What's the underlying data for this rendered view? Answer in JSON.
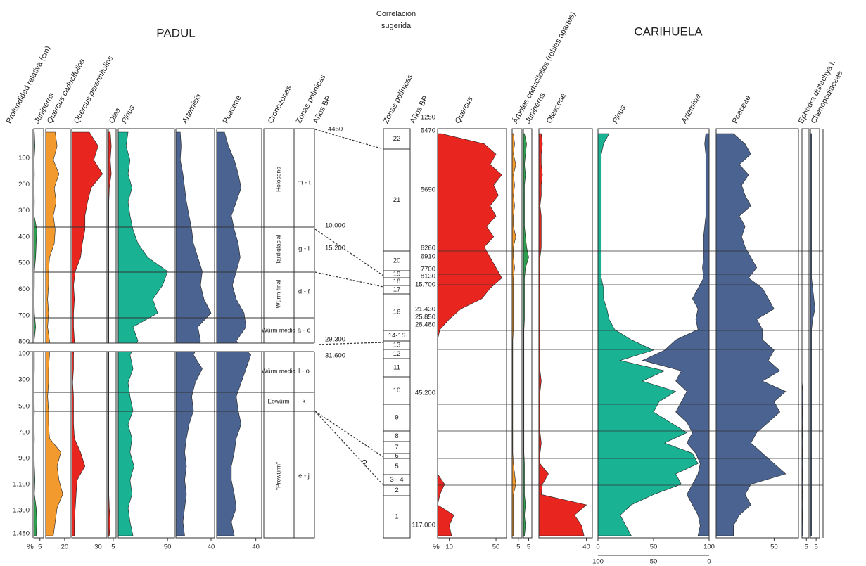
{
  "padul": {
    "title": "PADUL",
    "depth_header": "Profundidad relativa (cm)",
    "percent": "%",
    "depth_upper": [
      "100",
      "200",
      "300",
      "400",
      "500",
      "600",
      "700",
      "800"
    ],
    "depth_lower": [
      "100",
      "300",
      "500",
      "700",
      "900",
      "1.100",
      "1.300",
      "1.480"
    ],
    "cronozonas_header": "Cronozonas",
    "zonas_header": "Zonas polínicas",
    "anos_header": "Años BP",
    "cronozonas": [
      "Holoceno",
      "Tardiglacial",
      "Würm final",
      "Würm medio",
      "Würm medio",
      "Eowürm",
      "\"Prewürm\""
    ],
    "zonas": [
      "m - t",
      "g - l",
      "d - f",
      "a - c",
      "l - o",
      "k",
      "e - j"
    ],
    "ages": [
      "4450",
      "10.000",
      "15.200",
      "29.300",
      "31.600"
    ],
    "taxa": [
      {
        "name": "Juniperus",
        "italic": true,
        "color": "#2e9e4f",
        "xlim": [
          0,
          8
        ],
        "ticks": [
          5
        ],
        "values": [
          0.5,
          1,
          0.3,
          0.5,
          0.3,
          0.5,
          0.3,
          2.5,
          2,
          1.5,
          0.5,
          0.5,
          0.3,
          0.5,
          1.5,
          0.3,
          0.5,
          0.5,
          0.3,
          0.3,
          0.5,
          0.3,
          0.5,
          0.3,
          0.5,
          1,
          0.5,
          2,
          2.5,
          2
        ]
      },
      {
        "name": "Quercus caducifolios",
        "italic": true,
        "color": "#f39a2e",
        "xlim": [
          0,
          26
        ],
        "ticks": [
          20
        ],
        "values": [
          10,
          12,
          8,
          14,
          9,
          11,
          8,
          10,
          9,
          4,
          3,
          3,
          2,
          3,
          2,
          4,
          4,
          3,
          3,
          2,
          3,
          3,
          4,
          16,
          12,
          14,
          18,
          12,
          10,
          8
        ]
      },
      {
        "name": "Quercus perennifolios",
        "italic": true,
        "color": "#e8251f",
        "xlim": [
          0,
          40
        ],
        "ticks": [
          30
        ],
        "values": [
          20,
          30,
          25,
          35,
          22,
          18,
          15,
          15,
          12,
          10,
          4,
          2,
          3,
          2,
          2,
          3,
          2,
          2,
          1,
          2,
          2,
          2,
          3,
          10,
          15,
          6,
          5,
          4,
          3,
          3
        ]
      },
      {
        "name": "Olea",
        "italic": true,
        "color": "#e8251f",
        "xlim": [
          0,
          8
        ],
        "ticks": [
          5
        ],
        "values": [
          2,
          3,
          2,
          3,
          1,
          0.5,
          0.5,
          0.5,
          0.5,
          0.5,
          0.5,
          0.5,
          0.5,
          0.5,
          0.5,
          0.5,
          0.5,
          0.5,
          0.5,
          0.5,
          0.5,
          0.5,
          0.5,
          0.5,
          0.5,
          0.5,
          0.5,
          1,
          2,
          1
        ]
      },
      {
        "name": "Pinus",
        "italic": true,
        "color": "#19b394",
        "xlim": [
          0,
          57
        ],
        "ticks": [
          50
        ],
        "values": [
          10,
          8,
          12,
          10,
          14,
          10,
          12,
          15,
          20,
          30,
          50,
          45,
          35,
          40,
          15,
          20,
          12,
          15,
          10,
          12,
          15,
          10,
          14,
          12,
          16,
          12,
          14,
          10,
          12,
          15
        ]
      },
      {
        "name": "Artemisia",
        "italic": true,
        "color": "#4a6390",
        "xlim": [
          0,
          44
        ],
        "ticks": [
          40
        ],
        "values": [
          5,
          6,
          5,
          8,
          10,
          12,
          15,
          18,
          20,
          25,
          30,
          28,
          32,
          40,
          25,
          28,
          20,
          30,
          22,
          18,
          20,
          15,
          12,
          10,
          12,
          10,
          12,
          10,
          8,
          10
        ]
      },
      {
        "name": "Poaceae",
        "italic": false,
        "color": "#4a6390",
        "xlim": [
          0,
          46
        ],
        "ticks": [
          40
        ],
        "values": [
          8,
          12,
          18,
          22,
          25,
          20,
          15,
          18,
          22,
          24,
          20,
          16,
          20,
          28,
          30,
          20,
          35,
          30,
          25,
          20,
          22,
          25,
          20,
          18,
          15,
          15,
          18,
          20,
          15,
          18
        ]
      }
    ]
  },
  "correlation": {
    "title": [
      "Correlación",
      "sugerida"
    ],
    "question": "?"
  },
  "carihuela": {
    "title": "CARIHUELA",
    "percent": "%",
    "zonas_header": "Zonas polínicas",
    "anos_header": "Años BP",
    "zones": [
      "22",
      "21",
      "20",
      "19",
      "18",
      "17",
      "16",
      "14-15",
      "13",
      "12",
      "11",
      "10",
      "9",
      "8",
      "7",
      "6",
      "5",
      "3 - 4",
      "2",
      "1"
    ],
    "ages": [
      "1250",
      "5470",
      "5690",
      "6260",
      "6910",
      "7700",
      "8130",
      "15.700",
      "21.430",
      "25.850",
      "28.480",
      "45.200",
      "117.000"
    ],
    "taxa": [
      {
        "name": "Quercus",
        "italic": true,
        "color": "#e8251f",
        "xlim": [
          0,
          59
        ],
        "ticks": [
          10,
          50
        ],
        "values": [
          3,
          40,
          50,
          45,
          55,
          48,
          52,
          45,
          50,
          42,
          48,
          40,
          45,
          50,
          55,
          45,
          38,
          20,
          10,
          2,
          0,
          0,
          0,
          0,
          0,
          0,
          0,
          0,
          0,
          0,
          0,
          0,
          0,
          0,
          6,
          2,
          0,
          14,
          10,
          12
        ]
      },
      {
        "name": "Árboles caducifolios (robles apartes)",
        "italic": false,
        "color": "#f39a2e",
        "xlim": [
          0,
          8
        ],
        "ticks": [
          5
        ],
        "values": [
          1,
          2,
          1,
          3,
          1,
          2,
          1,
          2,
          1,
          1,
          3,
          1,
          1,
          2,
          1,
          1,
          1,
          1,
          1,
          1,
          0.5,
          0.5,
          0.5,
          0.5,
          0.5,
          0.5,
          0.5,
          0.5,
          0.5,
          0.5,
          0.5,
          0.5,
          1,
          2,
          3,
          1,
          1,
          1,
          1,
          1
        ]
      },
      {
        "name": "Juniperus",
        "italic": true,
        "color": "#2e9e4f",
        "xlim": [
          0,
          8
        ],
        "ticks": [
          5
        ],
        "values": [
          1,
          3,
          2,
          1,
          2,
          1,
          1,
          1,
          1,
          1,
          2,
          3,
          5,
          2,
          1,
          1,
          1,
          1,
          1,
          0.5,
          0.5,
          0.5,
          0.5,
          0.5,
          0.5,
          0.5,
          0.5,
          0.5,
          0.5,
          0.5,
          0.5,
          0.5,
          1,
          1,
          1,
          1,
          2,
          1,
          2,
          1
        ]
      },
      {
        "name": "Oleaceae",
        "italic": false,
        "color": "#e8251f",
        "xlim": [
          0,
          45
        ],
        "ticks": [
          40
        ],
        "values": [
          2,
          3,
          2,
          2,
          3,
          2,
          2,
          1,
          2,
          2,
          2,
          2,
          1,
          1,
          1,
          1,
          1,
          1,
          1,
          1,
          1,
          1,
          1,
          1,
          2,
          1,
          1,
          1,
          1,
          1,
          2,
          1,
          1,
          8,
          3,
          2,
          40,
          30,
          36,
          38
        ]
      },
      {
        "name": "Pinus",
        "italic": true,
        "color": "#19b394",
        "xlim": [
          0,
          100
        ],
        "ticks": [
          0,
          50,
          100
        ],
        "values": [
          10,
          5,
          3,
          3,
          3,
          3,
          3,
          3,
          3,
          3,
          3,
          3,
          3,
          3,
          3,
          5,
          5,
          8,
          10,
          15,
          30,
          50,
          20,
          60,
          40,
          70,
          55,
          50,
          65,
          80,
          60,
          85,
          90,
          70,
          75,
          50,
          30,
          20,
          25,
          30
        ]
      },
      {
        "name": "Artemisia",
        "italic": true,
        "color": "#4a6390",
        "xlim": [
          0,
          100
        ],
        "ticks": [
          100,
          50,
          0
        ],
        "reverse": true,
        "values": [
          3,
          4,
          3,
          3,
          3,
          3,
          3,
          3,
          3,
          4,
          5,
          5,
          5,
          6,
          5,
          10,
          15,
          10,
          12,
          10,
          30,
          40,
          60,
          25,
          30,
          20,
          25,
          30,
          20,
          15,
          20,
          12,
          8,
          10,
          15,
          20,
          15,
          10,
          8,
          10
        ]
      },
      {
        "name": "Poaceae",
        "italic": false,
        "color": "#4a6390",
        "xlim": [
          0,
          71
        ],
        "ticks": [
          50
        ],
        "values": [
          15,
          25,
          30,
          20,
          28,
          22,
          25,
          30,
          20,
          25,
          22,
          25,
          30,
          35,
          28,
          40,
          45,
          50,
          35,
          40,
          40,
          50,
          45,
          55,
          40,
          60,
          50,
          55,
          45,
          35,
          30,
          40,
          50,
          60,
          30,
          25,
          30,
          20,
          15,
          15
        ]
      },
      {
        "name": "Ephedra distachya t.",
        "italic": false,
        "color": "#4a6390",
        "xlim": [
          0,
          8
        ],
        "ticks": [
          5
        ],
        "values": [
          0,
          0,
          0,
          0,
          0,
          0,
          0,
          0,
          0,
          0,
          0,
          0,
          0,
          0,
          0,
          0,
          0,
          0,
          0,
          0,
          0,
          0,
          0,
          0,
          0,
          1,
          1,
          0.5,
          1,
          0.5,
          1,
          0.5,
          1,
          0.5,
          1,
          0.5,
          1,
          0.5,
          1,
          1
        ]
      },
      {
        "name": "Chenopodiaceae",
        "italic": false,
        "color": "#4a6390",
        "xlim": [
          0,
          8
        ],
        "ticks": [
          5
        ],
        "values": [
          1,
          1,
          1,
          1,
          1,
          1,
          1,
          1,
          1,
          1,
          1,
          1,
          1,
          1,
          1,
          2,
          3,
          4,
          2,
          1,
          1,
          1,
          1,
          1,
          1,
          1,
          1,
          1,
          1,
          1,
          1,
          1,
          1,
          1,
          1,
          1,
          1,
          1,
          1,
          1
        ]
      }
    ]
  }
}
